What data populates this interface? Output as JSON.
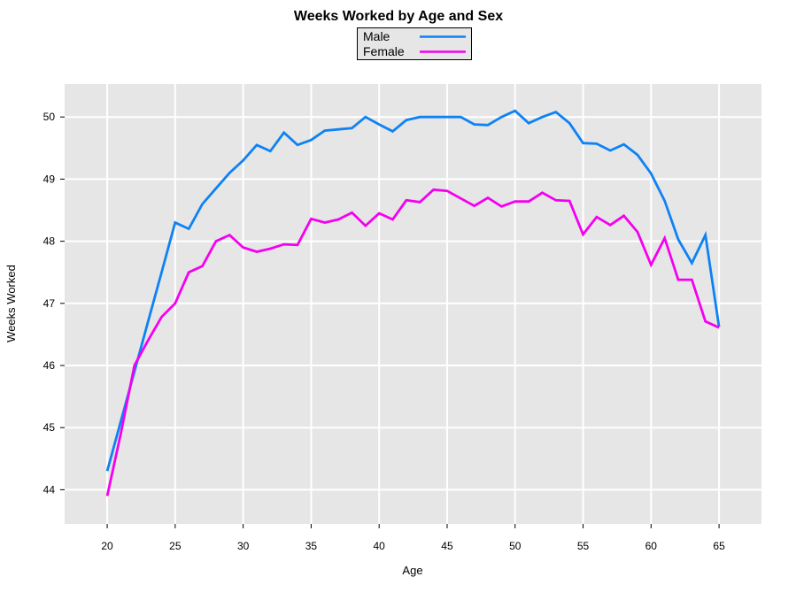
{
  "chart_data": {
    "type": "line",
    "title": "Weeks Worked by Age and Sex",
    "xlabel": "Age",
    "ylabel": "Weeks Worked",
    "x_ticks": [
      20,
      25,
      30,
      35,
      40,
      45,
      50,
      55,
      60,
      65
    ],
    "y_ticks": [
      44,
      45,
      46,
      47,
      48,
      49,
      50
    ],
    "xlim": [
      16.87,
      68.12
    ],
    "ylim": [
      43.45,
      50.53
    ],
    "grid": true,
    "panel_bg": "#e6e6e6",
    "grid_color": "#ffffff",
    "legend_position": "top-center",
    "x": [
      20,
      21,
      22,
      23,
      24,
      25,
      26,
      27,
      28,
      29,
      30,
      31,
      32,
      33,
      34,
      35,
      36,
      37,
      38,
      39,
      40,
      41,
      42,
      43,
      44,
      45,
      46,
      47,
      48,
      49,
      50,
      51,
      52,
      53,
      54,
      55,
      56,
      57,
      58,
      59,
      60,
      61,
      62,
      63,
      64,
      65
    ],
    "series": [
      {
        "name": "Male",
        "color": "#0d82f5",
        "values": [
          44.3,
          45.1,
          45.9,
          46.7,
          47.5,
          48.3,
          48.2,
          48.6,
          48.85,
          49.1,
          49.3,
          49.55,
          49.45,
          49.75,
          49.55,
          49.63,
          49.78,
          49.8,
          49.82,
          50.0,
          49.88,
          49.77,
          49.95,
          50.0,
          50.0,
          50.0,
          50.0,
          49.88,
          49.87,
          50.0,
          50.1,
          49.9,
          50.0,
          50.08,
          49.9,
          49.58,
          49.57,
          49.46,
          49.56,
          49.39,
          49.09,
          48.65,
          48.03,
          47.65,
          48.1,
          46.62
        ]
      },
      {
        "name": "Female",
        "color": "#f400f0",
        "values": [
          43.9,
          44.9,
          46.0,
          46.4,
          46.78,
          47.0,
          47.5,
          47.6,
          48.0,
          48.1,
          47.9,
          47.83,
          47.88,
          47.95,
          47.94,
          48.36,
          48.3,
          48.35,
          48.46,
          48.25,
          48.45,
          48.35,
          48.66,
          48.63,
          48.83,
          48.81,
          48.69,
          48.57,
          48.7,
          48.56,
          48.64,
          48.64,
          48.78,
          48.66,
          48.65,
          48.11,
          48.39,
          48.26,
          48.41,
          48.15,
          47.62,
          48.05,
          47.38,
          47.38,
          46.71,
          46.61
        ]
      }
    ]
  }
}
